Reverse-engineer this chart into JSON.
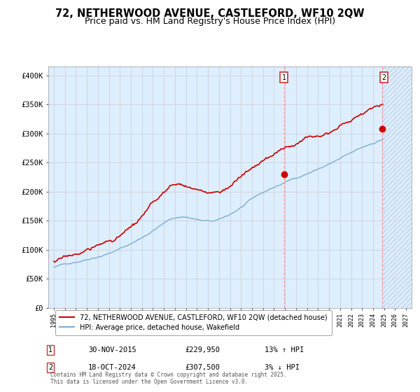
{
  "title": "72, NETHERWOOD AVENUE, CASTLEFORD, WF10 2QW",
  "subtitle": "Price paid vs. HM Land Registry's House Price Index (HPI)",
  "ylabel_ticks": [
    "£0",
    "£50K",
    "£100K",
    "£150K",
    "£200K",
    "£250K",
    "£300K",
    "£350K",
    "£400K"
  ],
  "ytick_values": [
    0,
    50000,
    100000,
    150000,
    200000,
    250000,
    300000,
    350000,
    400000
  ],
  "ylim": [
    0,
    415000
  ],
  "xlim_start": 1994.5,
  "xlim_end": 2027.5,
  "red_line_color": "#cc0000",
  "blue_line_color": "#7aafd4",
  "grid_color": "#cccccc",
  "background_color": "#ddeeff",
  "hatch_color": "#bbccdd",
  "marker1_x": 2015.92,
  "marker1_y": 229950,
  "marker2_x": 2024.8,
  "marker2_y": 307500,
  "vline1_x": 2015.92,
  "vline2_x": 2024.8,
  "future_start": 2024.8,
  "legend_red": "72, NETHERWOOD AVENUE, CASTLEFORD, WF10 2QW (detached house)",
  "legend_blue": "HPI: Average price, detached house, Wakefield",
  "annotation1_date": "30-NOV-2015",
  "annotation1_price": "£229,950",
  "annotation1_hpi": "13% ↑ HPI",
  "annotation2_date": "18-OCT-2024",
  "annotation2_price": "£307,500",
  "annotation2_hpi": "3% ↓ HPI",
  "footer": "Contains HM Land Registry data © Crown copyright and database right 2025.\nThis data is licensed under the Open Government Licence v3.0.",
  "title_fontsize": 10.5,
  "subtitle_fontsize": 9
}
